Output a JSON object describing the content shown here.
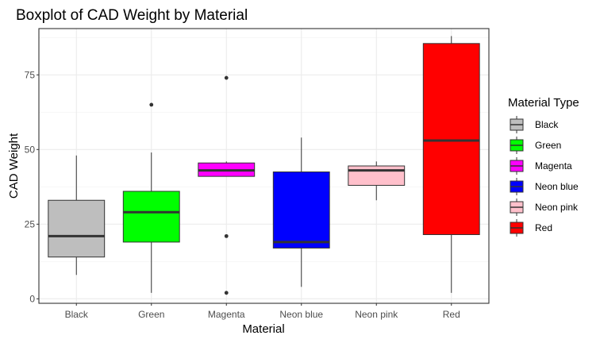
{
  "chart_data": {
    "type": "boxplot",
    "title": "Boxplot of CAD Weight by Material",
    "xlabel": "Material",
    "ylabel": "CAD Weight",
    "ylim": [
      -1.5,
      90.5
    ],
    "yticks": [
      0,
      25,
      50,
      75
    ],
    "grid": true,
    "legend": {
      "title": "Material Type",
      "position": "right"
    },
    "categories": [
      "Black",
      "Green",
      "Magenta",
      "Neon blue",
      "Neon pink",
      "Red"
    ],
    "boxes": [
      {
        "name": "Black",
        "color": "#BEBEBE",
        "whisker_low": 8,
        "q1": 14,
        "median": 21,
        "q3": 33,
        "whisker_high": 48,
        "outliers": []
      },
      {
        "name": "Green",
        "color": "#00FF00",
        "whisker_low": 2,
        "q1": 19,
        "median": 29,
        "q3": 36,
        "whisker_high": 49,
        "outliers": [
          65
        ]
      },
      {
        "name": "Magenta",
        "color": "#FF00FF",
        "whisker_low": 41,
        "q1": 41,
        "median": 43,
        "q3": 45.5,
        "whisker_high": 46,
        "outliers": [
          74,
          21,
          2
        ]
      },
      {
        "name": "Neon blue",
        "color": "#0000FF",
        "whisker_low": 4,
        "q1": 17,
        "median": 19,
        "q3": 42.5,
        "whisker_high": 54,
        "outliers": []
      },
      {
        "name": "Neon pink",
        "color": "#FFC0CB",
        "whisker_low": 33,
        "q1": 38,
        "median": 43,
        "q3": 44.5,
        "whisker_high": 46,
        "outliers": []
      },
      {
        "name": "Red",
        "color": "#FF0000",
        "whisker_low": 2,
        "q1": 21.5,
        "median": 53,
        "q3": 85.5,
        "whisker_high": 88,
        "outliers": []
      }
    ]
  }
}
